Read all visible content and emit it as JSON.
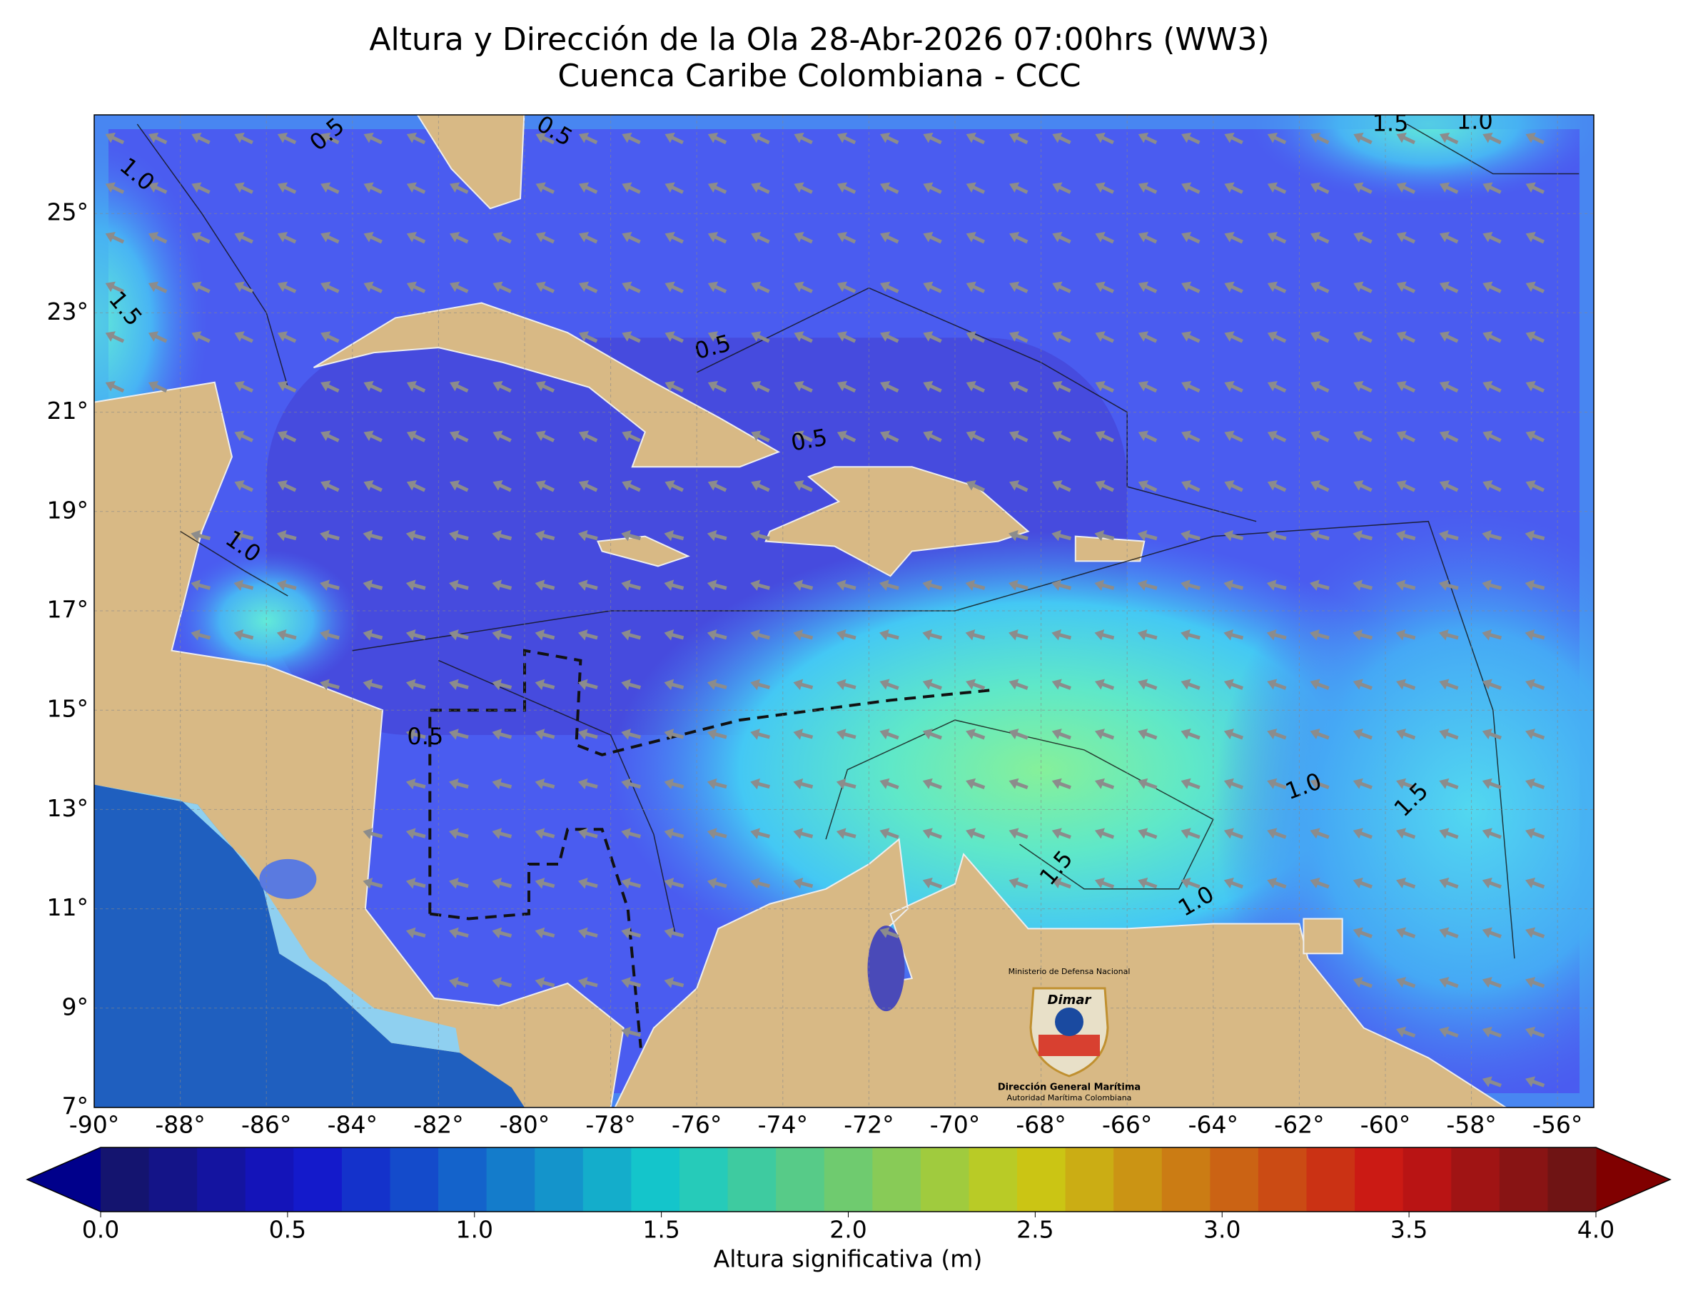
{
  "title": "Altura y Dirección de la Ola 28-Abr-2026 07:00hrs (WW3)",
  "subtitle": "Cuenca Caribe Colombiana - CCC",
  "longitude_ticks": [
    "-90°",
    "-88°",
    "-86°",
    "-84°",
    "-82°",
    "-80°",
    "-78°",
    "-76°",
    "-74°",
    "-72°",
    "-70°",
    "-68°",
    "-66°",
    "-64°",
    "-62°",
    "-60°",
    "-58°",
    "-56°"
  ],
  "latitude_ticks": [
    "7°",
    "9°",
    "11°",
    "13°",
    "15°",
    "17°",
    "19°",
    "21°",
    "23°",
    "25°"
  ],
  "contour_labels": [
    "0.5",
    "0.5",
    "1.5",
    "1.0",
    "1.0",
    "1.5",
    "0.5",
    "0.5",
    "1.0",
    "0.5",
    "1.0",
    "1.5",
    "1.5",
    "1.0"
  ],
  "colorbar": {
    "ticks": [
      "0.0",
      "0.5",
      "1.0",
      "1.5",
      "2.0",
      "2.5",
      "3.0",
      "3.5",
      "4.0"
    ],
    "label": "Altura significativa (m)"
  },
  "logo": {
    "ministry": "Ministerio de Defensa Nacional",
    "brand": "Dimar",
    "name": "Dirección General Marítima",
    "motto": "Autoridad Marítima Colombiana"
  }
}
